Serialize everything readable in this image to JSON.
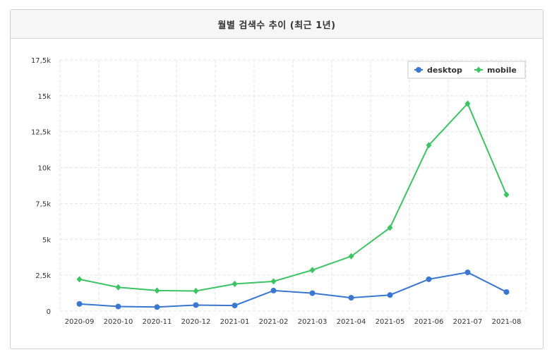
{
  "panel": {
    "title": "월별 검색수 추이 (최근 1년)"
  },
  "colors": {
    "desktop": "#3a77d0",
    "mobile": "#3cc364",
    "grid": "#e3e3e3"
  },
  "chart_data": {
    "type": "line",
    "title": "월별 검색수 추이 (최근 1년)",
    "categories": [
      "2020-09",
      "2020-10",
      "2020-11",
      "2020-12",
      "2021-01",
      "2021-02",
      "2021-03",
      "2021-04",
      "2021-05",
      "2021-06",
      "2021-07",
      "2021-08"
    ],
    "series": [
      {
        "name": "desktop",
        "marker": "circle",
        "values": [
          500,
          320,
          280,
          420,
          390,
          1430,
          1250,
          930,
          1120,
          2220,
          2700,
          1330
        ]
      },
      {
        "name": "mobile",
        "marker": "diamond",
        "values": [
          2220,
          1660,
          1430,
          1400,
          1890,
          2070,
          2860,
          3820,
          5810,
          11560,
          14460,
          8110
        ]
      }
    ],
    "yticks": [
      {
        "value": 0,
        "label": "0"
      },
      {
        "value": 2500,
        "label": "2,5k"
      },
      {
        "value": 5000,
        "label": "5k"
      },
      {
        "value": 7500,
        "label": "7,5k"
      },
      {
        "value": 10000,
        "label": "10k"
      },
      {
        "value": 12500,
        "label": "12,5k"
      },
      {
        "value": 15000,
        "label": "15k"
      },
      {
        "value": 17500,
        "label": "17,5k"
      }
    ],
    "ylim": [
      0,
      17500
    ],
    "xlabel": "",
    "ylabel": "",
    "grid": true,
    "legend": "top-right"
  }
}
